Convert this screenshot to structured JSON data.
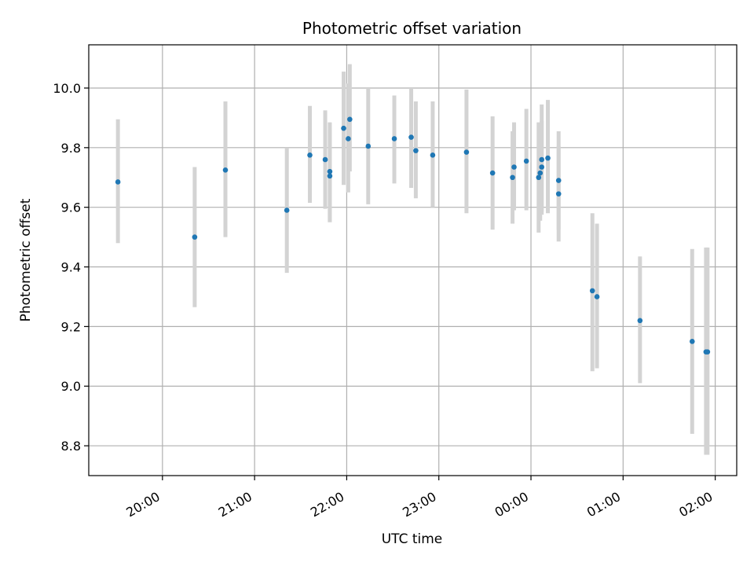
{
  "chart_data": {
    "type": "scatter",
    "title": "Photometric offset variation",
    "xlabel": "UTC time",
    "ylabel": "Photometric offset",
    "x_tick_labels": [
      "20:00",
      "21:00",
      "22:00",
      "23:00",
      "00:00",
      "01:00",
      "02:00"
    ],
    "x_tick_values": [
      1200,
      1260,
      1320,
      1380,
      1440,
      1500,
      1560
    ],
    "y_tick_labels": [
      "8.8",
      "9.0",
      "9.2",
      "9.4",
      "9.6",
      "9.8",
      "10.0"
    ],
    "y_tick_values": [
      8.8,
      9.0,
      9.2,
      9.4,
      9.6,
      9.8,
      10.0
    ],
    "xlim": [
      1152,
      1574
    ],
    "ylim": [
      8.7,
      10.145
    ],
    "grid": true,
    "colors": {
      "point": "#1f77b4",
      "errorbar": "#d3d3d3",
      "grid": "#b0b0b0"
    },
    "points": [
      {
        "x": 1171,
        "y": 9.685,
        "ylo": 9.48,
        "yhi": 9.895
      },
      {
        "x": 1221,
        "y": 9.5,
        "ylo": 9.265,
        "yhi": 9.735
      },
      {
        "x": 1241,
        "y": 9.725,
        "ylo": 9.5,
        "yhi": 9.955
      },
      {
        "x": 1281,
        "y": 9.59,
        "ylo": 9.38,
        "yhi": 9.8
      },
      {
        "x": 1296,
        "y": 9.775,
        "ylo": 9.615,
        "yhi": 9.94
      },
      {
        "x": 1306,
        "y": 9.76,
        "ylo": 9.595,
        "yhi": 9.925
      },
      {
        "x": 1309,
        "y": 9.72,
        "ylo": 9.55,
        "yhi": 9.885
      },
      {
        "x": 1309,
        "y": 9.705,
        "ylo": 9.55,
        "yhi": 9.86
      },
      {
        "x": 1318,
        "y": 9.865,
        "ylo": 9.675,
        "yhi": 10.055
      },
      {
        "x": 1321,
        "y": 9.83,
        "ylo": 9.65,
        "yhi": 10.015
      },
      {
        "x": 1322,
        "y": 9.895,
        "ylo": 9.72,
        "yhi": 10.08
      },
      {
        "x": 1334,
        "y": 9.805,
        "ylo": 9.61,
        "yhi": 10.0
      },
      {
        "x": 1351,
        "y": 9.83,
        "ylo": 9.68,
        "yhi": 9.975
      },
      {
        "x": 1362,
        "y": 9.835,
        "ylo": 9.665,
        "yhi": 10.0
      },
      {
        "x": 1365,
        "y": 9.79,
        "ylo": 9.63,
        "yhi": 9.955
      },
      {
        "x": 1376,
        "y": 9.775,
        "ylo": 9.6,
        "yhi": 9.955
      },
      {
        "x": 1398,
        "y": 9.785,
        "ylo": 9.58,
        "yhi": 9.995
      },
      {
        "x": 1415,
        "y": 9.715,
        "ylo": 9.525,
        "yhi": 9.905
      },
      {
        "x": 1428,
        "y": 9.7,
        "ylo": 9.545,
        "yhi": 9.855
      },
      {
        "x": 1429,
        "y": 9.735,
        "ylo": 9.59,
        "yhi": 9.885
      },
      {
        "x": 1437,
        "y": 9.755,
        "ylo": 9.59,
        "yhi": 9.93
      },
      {
        "x": 1445,
        "y": 9.7,
        "ylo": 9.515,
        "yhi": 9.885
      },
      {
        "x": 1446,
        "y": 9.715,
        "ylo": 9.555,
        "yhi": 9.87
      },
      {
        "x": 1447,
        "y": 9.735,
        "ylo": 9.575,
        "yhi": 9.89
      },
      {
        "x": 1447,
        "y": 9.76,
        "ylo": 9.585,
        "yhi": 9.945
      },
      {
        "x": 1451,
        "y": 9.765,
        "ylo": 9.58,
        "yhi": 9.96
      },
      {
        "x": 1458,
        "y": 9.645,
        "ylo": 9.485,
        "yhi": 9.805
      },
      {
        "x": 1458,
        "y": 9.69,
        "ylo": 9.525,
        "yhi": 9.855
      },
      {
        "x": 1480,
        "y": 9.32,
        "ylo": 9.05,
        "yhi": 9.58
      },
      {
        "x": 1483,
        "y": 9.3,
        "ylo": 9.06,
        "yhi": 9.545
      },
      {
        "x": 1511,
        "y": 9.22,
        "ylo": 9.01,
        "yhi": 9.435
      },
      {
        "x": 1545,
        "y": 9.15,
        "ylo": 8.84,
        "yhi": 9.46
      },
      {
        "x": 1554,
        "y": 9.115,
        "ylo": 8.77,
        "yhi": 9.465
      },
      {
        "x": 1555,
        "y": 9.115,
        "ylo": 8.77,
        "yhi": 9.465
      }
    ]
  }
}
